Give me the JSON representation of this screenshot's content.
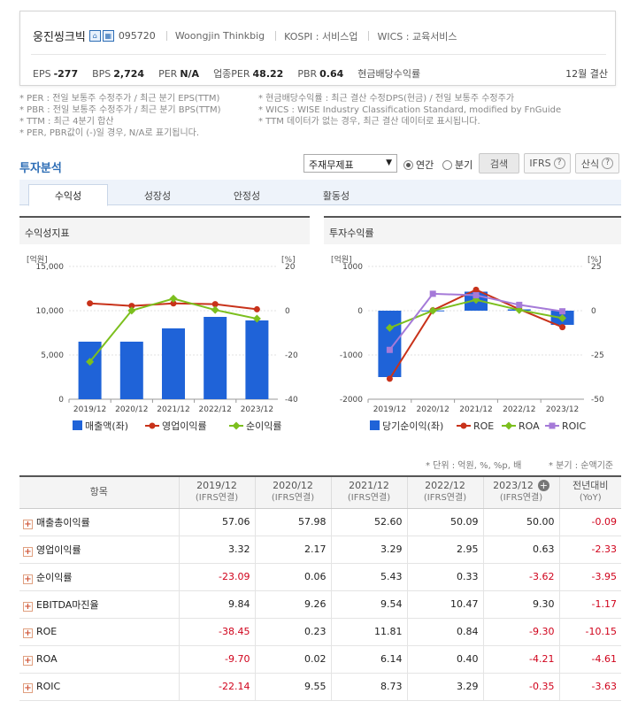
{
  "company": {
    "name": "웅진씽크빅",
    "code": "095720",
    "english_name": "Woongjin Thinkbig",
    "market": "KOSPI : 서비스업",
    "wics": "WICS : 교육서비스",
    "metrics": [
      {
        "label": "EPS",
        "value": "-277"
      },
      {
        "label": "BPS",
        "value": "2,724"
      },
      {
        "label": "PER",
        "value": "N/A"
      },
      {
        "label": "업종PER",
        "value": "48.22"
      },
      {
        "label": "PBR",
        "value": "0.64"
      },
      {
        "label": "현금배당수익률",
        "value": ""
      }
    ],
    "fiscal": "12월 결산"
  },
  "notes_left": [
    "* PER : 전일 보통주 수정주가 / 최근 분기 EPS(TTM)",
    "* PBR : 전일 보통주 수정주가 / 최근 분기 BPS(TTM)",
    "* TTM : 최근 4분기 합산",
    "* PER, PBR값이 (-)일 경우, N/A로 표기됩니다."
  ],
  "notes_right": [
    "* 현금배당수익률 : 최근 결산 수정DPS(현금) / 전일 보통주 수정주가",
    "* WICS : WISE Industry Classification Standard, modified by FnGuide",
    "* TTM 데이터가 없는 경우, 최근 결산 데이터로 표시됩니다."
  ],
  "section_title": "투자분석",
  "controls": {
    "select_value": "주재무제표",
    "radio_annual": "연간",
    "radio_quarter": "분기",
    "search_button": "검색",
    "ifrs_button": "IFRS",
    "formula_button": "산식"
  },
  "tabs": [
    "수익성",
    "성장성",
    "안정성",
    "활동성"
  ],
  "charts": {
    "left_title": "수익성지표",
    "right_title": "투자수익률",
    "left_unit_left": "[억원]",
    "left_unit_right": "[%]",
    "right_unit_left": "[억원]",
    "right_unit_right": "[%]",
    "left_legend": [
      "매출액(좌)",
      "영업이익률",
      "순이익률"
    ],
    "right_legend": [
      "당기순이익(좌)",
      "ROE",
      "ROA",
      "ROIC"
    ],
    "colors": {
      "bar": "#1f63d8",
      "red": "#c8321a",
      "green": "#7cbf1e",
      "purple": "#a57ad8"
    }
  },
  "chart_data": [
    {
      "type": "bar",
      "title": "수익성지표",
      "categories": [
        "2019/12",
        "2020/12",
        "2021/12",
        "2022/12",
        "2023/12"
      ],
      "ylim": [
        0,
        15000
      ],
      "y2lim": [
        -40,
        20
      ],
      "yticks": [
        "15,000",
        "10,000",
        "5,000",
        "0"
      ],
      "y2ticks": [
        "20",
        "0",
        "-20",
        "-40"
      ],
      "series": [
        {
          "name": "매출액(좌)",
          "axis": "left",
          "kind": "bar",
          "values": [
            6500,
            6500,
            8000,
            9300,
            8900
          ]
        },
        {
          "name": "영업이익률",
          "axis": "right",
          "kind": "line",
          "values": [
            3.32,
            2.17,
            3.29,
            2.95,
            0.63
          ]
        },
        {
          "name": "순이익률",
          "axis": "right",
          "kind": "line",
          "values": [
            -23.09,
            0.06,
            5.43,
            0.33,
            -3.62
          ]
        }
      ]
    },
    {
      "type": "bar",
      "title": "투자수익률",
      "categories": [
        "2019/12",
        "2020/12",
        "2021/12",
        "2022/12",
        "2023/12"
      ],
      "ylim": [
        -2000,
        1000
      ],
      "y2lim": [
        -50,
        25
      ],
      "yticks": [
        "1000",
        "0",
        "-1000",
        "-2000"
      ],
      "y2ticks": [
        "25",
        "0",
        "-25",
        "-50"
      ],
      "series": [
        {
          "name": "당기순이익(좌)",
          "axis": "left",
          "kind": "bar",
          "values": [
            -1500,
            5,
            430,
            30,
            -320
          ]
        },
        {
          "name": "ROE",
          "axis": "right",
          "kind": "line",
          "values": [
            -38.45,
            0.23,
            11.81,
            0.84,
            -9.3
          ]
        },
        {
          "name": "ROA",
          "axis": "right",
          "kind": "line",
          "values": [
            -9.7,
            0.02,
            6.14,
            0.4,
            -4.21
          ]
        },
        {
          "name": "ROIC",
          "axis": "right",
          "kind": "line",
          "values": [
            -22.14,
            9.55,
            8.73,
            3.29,
            -0.35
          ]
        }
      ]
    }
  ],
  "unit_note": "* 단위 : 억원, %, %p, 배",
  "unit_note2": "* 분기 : 순액기준",
  "table": {
    "header_item": "항목",
    "columns": [
      {
        "year": "2019/12",
        "sub": "(IFRS연결)"
      },
      {
        "year": "2020/12",
        "sub": "(IFRS연결)"
      },
      {
        "year": "2021/12",
        "sub": "(IFRS연결)"
      },
      {
        "year": "2022/12",
        "sub": "(IFRS연결)"
      },
      {
        "year": "2023/12",
        "sub": "(IFRS연결)"
      },
      {
        "year": "전년대비",
        "sub": "(YoY)"
      }
    ],
    "rows": [
      {
        "label": "매출총이익률",
        "values": [
          "57.06",
          "57.98",
          "52.60",
          "50.09",
          "50.00",
          "-0.09"
        ]
      },
      {
        "label": "영업이익률",
        "values": [
          "3.32",
          "2.17",
          "3.29",
          "2.95",
          "0.63",
          "-2.33"
        ]
      },
      {
        "label": "순이익률",
        "values": [
          "-23.09",
          "0.06",
          "5.43",
          "0.33",
          "-3.62",
          "-3.95"
        ]
      },
      {
        "label": "EBITDA마진율",
        "values": [
          "9.84",
          "9.26",
          "9.54",
          "10.47",
          "9.30",
          "-1.17"
        ]
      },
      {
        "label": "ROE",
        "values": [
          "-38.45",
          "0.23",
          "11.81",
          "0.84",
          "-9.30",
          "-10.15"
        ]
      },
      {
        "label": "ROA",
        "values": [
          "-9.70",
          "0.02",
          "6.14",
          "0.40",
          "-4.21",
          "-4.61"
        ]
      },
      {
        "label": "ROIC",
        "values": [
          "-22.14",
          "9.55",
          "8.73",
          "3.29",
          "-0.35",
          "-3.63"
        ]
      }
    ]
  }
}
